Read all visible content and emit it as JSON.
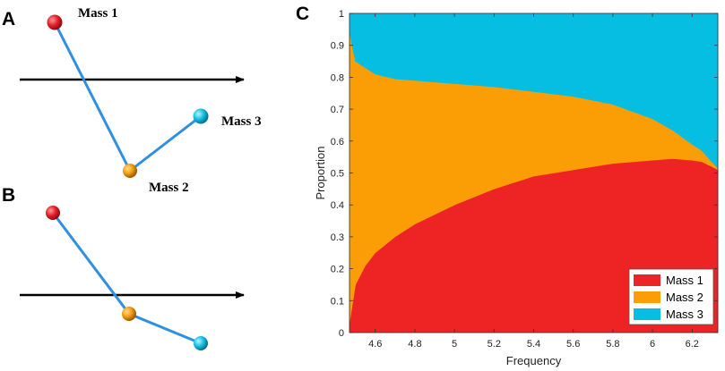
{
  "panels": {
    "a": {
      "letter": "A",
      "mass1_label": "Mass 1",
      "mass2_label": "Mass 2",
      "mass3_label": "Mass 3"
    },
    "b": {
      "letter": "B"
    },
    "c": {
      "letter": "C"
    }
  },
  "colors": {
    "mass1": "#ee2323",
    "mass2": "#fb9e05",
    "mass3": "#06bee2",
    "rod": "#2f8fe0",
    "arrow": "#000000"
  },
  "chart_data": {
    "type": "area",
    "stacked": true,
    "xlabel": "Frequency",
    "ylabel": "Proportion",
    "xlim": [
      4.47,
      6.33
    ],
    "ylim": [
      0,
      1
    ],
    "xticks": [
      4.6,
      4.8,
      5,
      5.2,
      5.4,
      5.6,
      5.8,
      6,
      6.2
    ],
    "xtick_labels": [
      "4.6",
      "4.8",
      "5",
      "5.2",
      "5.4",
      "5.6",
      "5.8",
      "6",
      "6.2"
    ],
    "yticks": [
      0,
      0.1,
      0.2,
      0.3,
      0.4,
      0.5,
      0.6,
      0.7,
      0.8,
      0.9,
      1
    ],
    "ytick_labels": [
      "0",
      "0.1",
      "0.2",
      "0.3",
      "0.4",
      "0.5",
      "0.6",
      "0.7",
      "0.8",
      "0.9",
      "1"
    ],
    "legend_position": "bottom-right",
    "x": [
      4.47,
      4.5,
      4.55,
      4.6,
      4.7,
      4.8,
      5.0,
      5.2,
      5.4,
      5.6,
      5.8,
      6.0,
      6.1,
      6.2,
      6.25,
      6.3,
      6.33
    ],
    "series": [
      {
        "name": "Mass 1",
        "values": [
          0.03,
          0.15,
          0.21,
          0.25,
          0.3,
          0.34,
          0.4,
          0.45,
          0.49,
          0.51,
          0.53,
          0.54,
          0.545,
          0.54,
          0.535,
          0.52,
          0.51
        ]
      },
      {
        "name": "Mass 2",
        "values": [
          0.91,
          0.7,
          0.62,
          0.56,
          0.495,
          0.45,
          0.38,
          0.32,
          0.265,
          0.23,
          0.185,
          0.13,
          0.09,
          0.05,
          0.035,
          0.015,
          0.005
        ]
      },
      {
        "name": "Mass 3",
        "values": [
          0.06,
          0.15,
          0.17,
          0.19,
          0.205,
          0.21,
          0.22,
          0.23,
          0.245,
          0.26,
          0.285,
          0.33,
          0.365,
          0.41,
          0.43,
          0.465,
          0.485
        ]
      }
    ]
  }
}
